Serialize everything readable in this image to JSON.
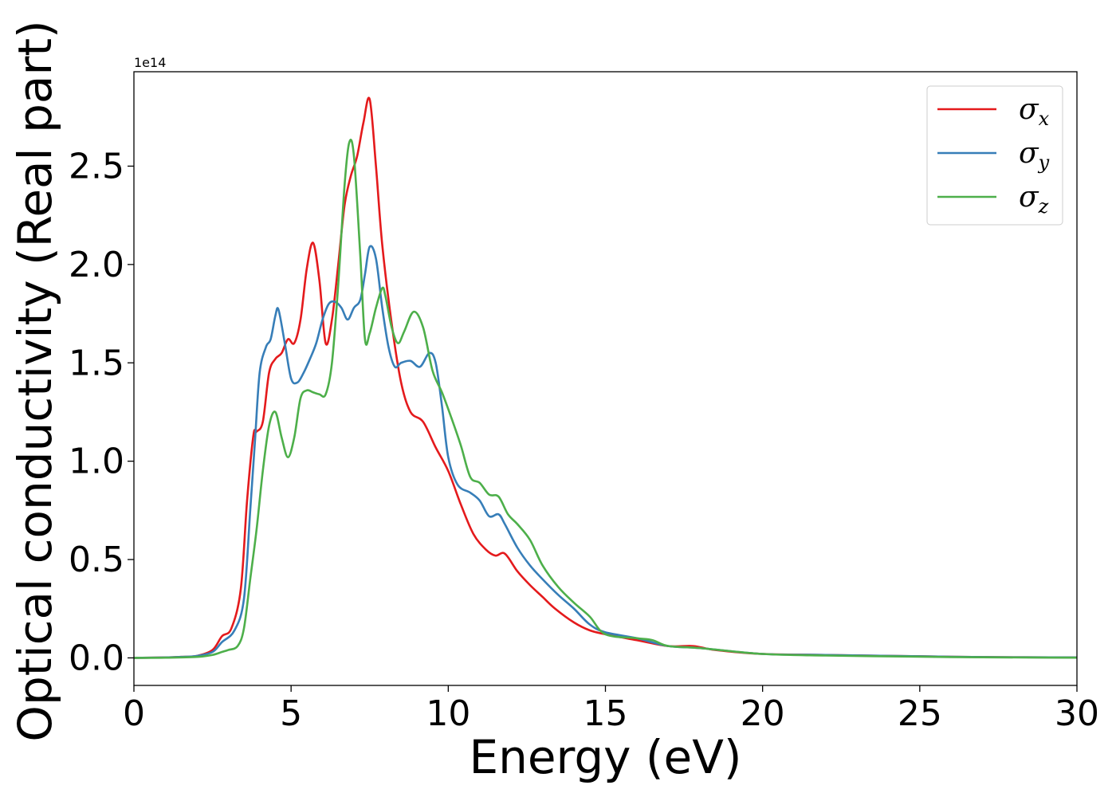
{
  "chart_data": {
    "type": "line",
    "title": "",
    "xlabel": "Energy (eV)",
    "ylabel": "Optical conductivity (Real part)",
    "y_offset_label": "1e14",
    "xlim": [
      0,
      30
    ],
    "ylim": [
      -0.14,
      2.98
    ],
    "x_ticks": [
      0,
      5,
      10,
      15,
      20,
      25,
      30
    ],
    "x_tick_labels": [
      "0",
      "5",
      "10",
      "15",
      "20",
      "25",
      "30"
    ],
    "y_ticks": [
      0.0,
      0.5,
      1.0,
      1.5,
      2.0,
      2.5
    ],
    "y_tick_labels": [
      "0.0",
      "0.5",
      "1.0",
      "1.5",
      "2.0",
      "2.5"
    ],
    "grid": false,
    "legend_position": "top-right",
    "series": [
      {
        "name": "σ",
        "subscript": "x",
        "color": "#e41a1c",
        "x": [
          0,
          1,
          1.5,
          2,
          2.5,
          2.8,
          3.1,
          3.4,
          3.6,
          3.8,
          3.9,
          4.1,
          4.3,
          4.5,
          4.7,
          4.9,
          5.1,
          5.3,
          5.5,
          5.7,
          5.9,
          6.1,
          6.3,
          6.5,
          6.7,
          6.9,
          7.1,
          7.3,
          7.5,
          7.7,
          7.9,
          8.2,
          8.5,
          8.8,
          9.2,
          9.6,
          10.0,
          10.4,
          10.8,
          11.2,
          11.5,
          11.8,
          12.2,
          12.6,
          13.0,
          13.4,
          14.0,
          14.5,
          15.0,
          16.0,
          17.0,
          17.8,
          18.5,
          20.0,
          22.0,
          25.0,
          27.0,
          30.0
        ],
        "y": [
          0,
          0.002,
          0.005,
          0.01,
          0.04,
          0.11,
          0.15,
          0.35,
          0.8,
          1.13,
          1.15,
          1.2,
          1.45,
          1.52,
          1.55,
          1.62,
          1.6,
          1.72,
          1.98,
          2.11,
          1.92,
          1.6,
          1.72,
          2.0,
          2.3,
          2.45,
          2.55,
          2.72,
          2.84,
          2.5,
          2.1,
          1.7,
          1.4,
          1.25,
          1.2,
          1.07,
          0.95,
          0.78,
          0.63,
          0.55,
          0.52,
          0.53,
          0.44,
          0.37,
          0.31,
          0.25,
          0.18,
          0.14,
          0.12,
          0.09,
          0.06,
          0.06,
          0.04,
          0.02,
          0.015,
          0.008,
          0.004,
          0.002
        ]
      },
      {
        "name": "σ",
        "subscript": "y",
        "color": "#377eb8",
        "x": [
          0,
          1,
          1.5,
          2,
          2.5,
          2.8,
          3.2,
          3.5,
          3.7,
          3.85,
          4.0,
          4.2,
          4.35,
          4.5,
          4.6,
          4.8,
          5.0,
          5.2,
          5.4,
          5.6,
          5.8,
          6.0,
          6.2,
          6.4,
          6.6,
          6.8,
          7.0,
          7.2,
          7.35,
          7.5,
          7.7,
          7.9,
          8.1,
          8.3,
          8.5,
          8.8,
          9.1,
          9.4,
          9.6,
          9.8,
          10.0,
          10.3,
          10.7,
          11.0,
          11.3,
          11.6,
          11.8,
          12.2,
          12.6,
          13.0,
          13.5,
          14.0,
          14.5,
          15.0,
          16.0,
          17.0,
          18.0,
          20.0,
          22.0,
          25.0,
          27.0,
          30.0
        ],
        "y": [
          0,
          0.002,
          0.005,
          0.01,
          0.03,
          0.08,
          0.14,
          0.3,
          0.75,
          1.1,
          1.45,
          1.58,
          1.62,
          1.74,
          1.77,
          1.6,
          1.42,
          1.4,
          1.45,
          1.52,
          1.6,
          1.72,
          1.8,
          1.81,
          1.78,
          1.72,
          1.78,
          1.82,
          1.95,
          2.09,
          2.03,
          1.78,
          1.58,
          1.48,
          1.5,
          1.51,
          1.48,
          1.55,
          1.5,
          1.28,
          1.02,
          0.88,
          0.84,
          0.8,
          0.72,
          0.73,
          0.68,
          0.56,
          0.47,
          0.4,
          0.32,
          0.25,
          0.17,
          0.13,
          0.1,
          0.06,
          0.05,
          0.02,
          0.015,
          0.008,
          0.004,
          0.002
        ]
      },
      {
        "name": "σ",
        "subscript": "z",
        "color": "#4daf4a",
        "x": [
          0,
          1,
          2,
          2.5,
          2.8,
          3.0,
          3.3,
          3.5,
          3.7,
          3.9,
          4.1,
          4.3,
          4.5,
          4.7,
          4.9,
          5.1,
          5.3,
          5.5,
          5.7,
          5.9,
          6.1,
          6.3,
          6.5,
          6.7,
          6.85,
          7.0,
          7.2,
          7.35,
          7.5,
          7.7,
          7.9,
          8.0,
          8.2,
          8.4,
          8.6,
          8.9,
          9.2,
          9.5,
          9.8,
          10.1,
          10.4,
          10.7,
          11.0,
          11.3,
          11.6,
          11.9,
          12.2,
          12.6,
          13.0,
          13.5,
          14.0,
          14.5,
          15.0,
          16.0,
          16.5,
          17.0,
          18.0,
          20.0,
          22.0,
          25.0,
          27.0,
          30.0
        ],
        "y": [
          0,
          0.001,
          0.005,
          0.015,
          0.03,
          0.04,
          0.06,
          0.15,
          0.4,
          0.65,
          0.95,
          1.18,
          1.25,
          1.12,
          1.02,
          1.12,
          1.32,
          1.36,
          1.35,
          1.34,
          1.34,
          1.5,
          1.9,
          2.4,
          2.62,
          2.55,
          2.05,
          1.62,
          1.65,
          1.78,
          1.88,
          1.84,
          1.68,
          1.6,
          1.66,
          1.76,
          1.68,
          1.46,
          1.35,
          1.22,
          1.08,
          0.92,
          0.89,
          0.83,
          0.82,
          0.73,
          0.68,
          0.6,
          0.47,
          0.36,
          0.28,
          0.21,
          0.12,
          0.1,
          0.09,
          0.06,
          0.05,
          0.02,
          0.012,
          0.006,
          0.003,
          0.001
        ]
      }
    ]
  }
}
